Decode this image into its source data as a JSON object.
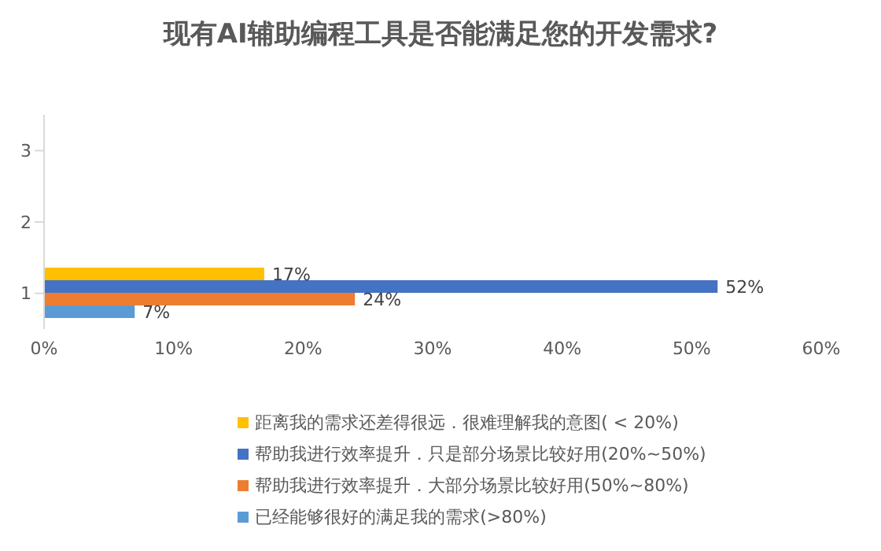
{
  "chart_data": {
    "type": "bar",
    "orientation": "horizontal",
    "title": "现有AI辅助编程工具是否能满足您的开发需求?",
    "categories": [
      "3",
      "2",
      "1"
    ],
    "series": [
      {
        "name": "距离我的需求还差得很远．很难理解我的意图( < 20%)",
        "color": "#ffc000",
        "values": [
          null,
          null,
          17
        ],
        "value_labels": [
          null,
          null,
          "17%"
        ]
      },
      {
        "name": "帮助我进行效率提升．只是部分场景比较好用(20%~50%)",
        "color": "#4472c4",
        "values": [
          null,
          null,
          52
        ],
        "value_labels": [
          null,
          null,
          "52%"
        ]
      },
      {
        "name": "帮助我进行效率提升．大部分场景比较好用(50%~80%)",
        "color": "#ed7d31",
        "values": [
          null,
          null,
          24
        ],
        "value_labels": [
          null,
          null,
          "24%"
        ]
      },
      {
        "name": "已经能够很好的满足我的需求(>80%)",
        "color": "#5b9bd5",
        "values": [
          null,
          null,
          7
        ],
        "value_labels": [
          null,
          null,
          "7%"
        ]
      }
    ],
    "xlim": [
      0,
      60
    ],
    "xticks": [
      {
        "value": 0,
        "label": "0%"
      },
      {
        "value": 10,
        "label": "10%"
      },
      {
        "value": 20,
        "label": "20%"
      },
      {
        "value": 30,
        "label": "30%"
      },
      {
        "value": 40,
        "label": "40%"
      },
      {
        "value": 50,
        "label": "50%"
      },
      {
        "value": 60,
        "label": "60%"
      }
    ],
    "grid": false,
    "legend": "bottom"
  }
}
